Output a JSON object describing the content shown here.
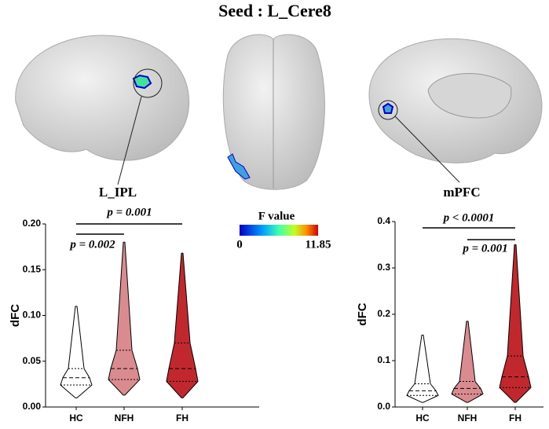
{
  "title": "Seed : L_Cere8",
  "regions": [
    "L_IPL",
    "mPFC"
  ],
  "colorbar": {
    "label": "F value",
    "min": 0,
    "max": 11.85
  },
  "chart_data": [
    {
      "type": "violin",
      "ylabel": "dFC",
      "categories": [
        "HC",
        "NFH",
        "FH"
      ],
      "colors": [
        "#ffffff",
        "#d98b8f",
        "#c0282d"
      ],
      "stats": [
        {
          "min": 0.01,
          "q1": 0.024,
          "median": 0.032,
          "q3": 0.042,
          "max": 0.11
        },
        {
          "min": 0.013,
          "q1": 0.03,
          "median": 0.042,
          "q3": 0.062,
          "max": 0.18
        },
        {
          "min": 0.01,
          "q1": 0.028,
          "median": 0.042,
          "q3": 0.07,
          "max": 0.168
        }
      ],
      "ylim": [
        0,
        0.2
      ],
      "yticks": [
        {
          "value": 0,
          "label": "0.00"
        },
        {
          "value": 0.05,
          "label": "0.05"
        },
        {
          "value": 0.1,
          "label": "0.10"
        },
        {
          "value": 0.15,
          "label": "0.15"
        },
        {
          "value": 0.2,
          "label": "0.20"
        }
      ],
      "annotations": [
        {
          "text": "p = 0.002",
          "between": [
            "HC",
            "NFH"
          ]
        },
        {
          "text": "p = 0.001",
          "between": [
            "HC",
            "FH"
          ]
        }
      ]
    },
    {
      "type": "violin",
      "ylabel": "dFC",
      "categories": [
        "HC",
        "NFH",
        "FH"
      ],
      "colors": [
        "#ffffff",
        "#d98b8f",
        "#c0282d"
      ],
      "stats": [
        {
          "min": 0.01,
          "q1": 0.025,
          "median": 0.035,
          "q3": 0.05,
          "max": 0.155
        },
        {
          "min": 0.01,
          "q1": 0.028,
          "median": 0.04,
          "q3": 0.055,
          "max": 0.185
        },
        {
          "min": 0.01,
          "q1": 0.042,
          "median": 0.065,
          "q3": 0.11,
          "max": 0.35
        }
      ],
      "ylim": [
        0,
        0.4
      ],
      "yticks": [
        {
          "value": 0,
          "label": "0.0"
        },
        {
          "value": 0.1,
          "label": "0.1"
        },
        {
          "value": 0.2,
          "label": "0.2"
        },
        {
          "value": 0.3,
          "label": "0.3"
        },
        {
          "value": 0.4,
          "label": "0.4"
        }
      ],
      "annotations": [
        {
          "text": "p = 0.001",
          "between": [
            "NFH",
            "FH"
          ]
        },
        {
          "text": "p < 0.0001",
          "between": [
            "HC",
            "FH"
          ]
        }
      ]
    }
  ]
}
